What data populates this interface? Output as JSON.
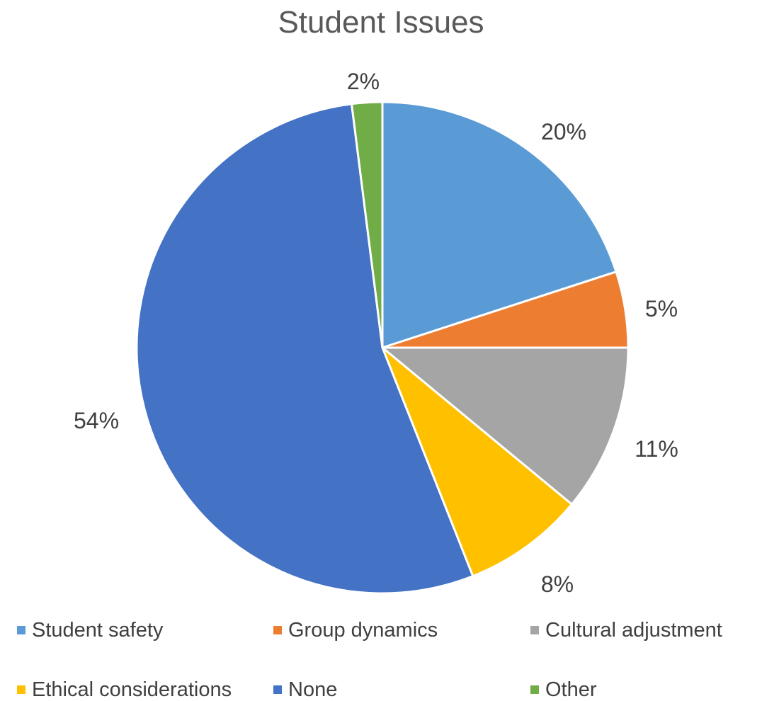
{
  "chart_data": {
    "type": "pie",
    "title": "Student Issues",
    "slices": [
      {
        "label": "Student safety",
        "value": 20,
        "display": "20%",
        "color": "#5B9BD5"
      },
      {
        "label": "Group dynamics",
        "value": 5,
        "display": "5%",
        "color": "#ED7D31"
      },
      {
        "label": "Cultural adjustment",
        "value": 11,
        "display": "11%",
        "color": "#A5A5A5"
      },
      {
        "label": "Ethical considerations",
        "value": 8,
        "display": "8%",
        "color": "#FFC000"
      },
      {
        "label": "None",
        "value": 54,
        "display": "54%",
        "color": "#4472C4"
      },
      {
        "label": "Other",
        "value": 2,
        "display": "2%",
        "color": "#70AD47"
      }
    ],
    "start_angle": "12 o'clock",
    "direction": "clockwise",
    "legend_position": "bottom"
  }
}
